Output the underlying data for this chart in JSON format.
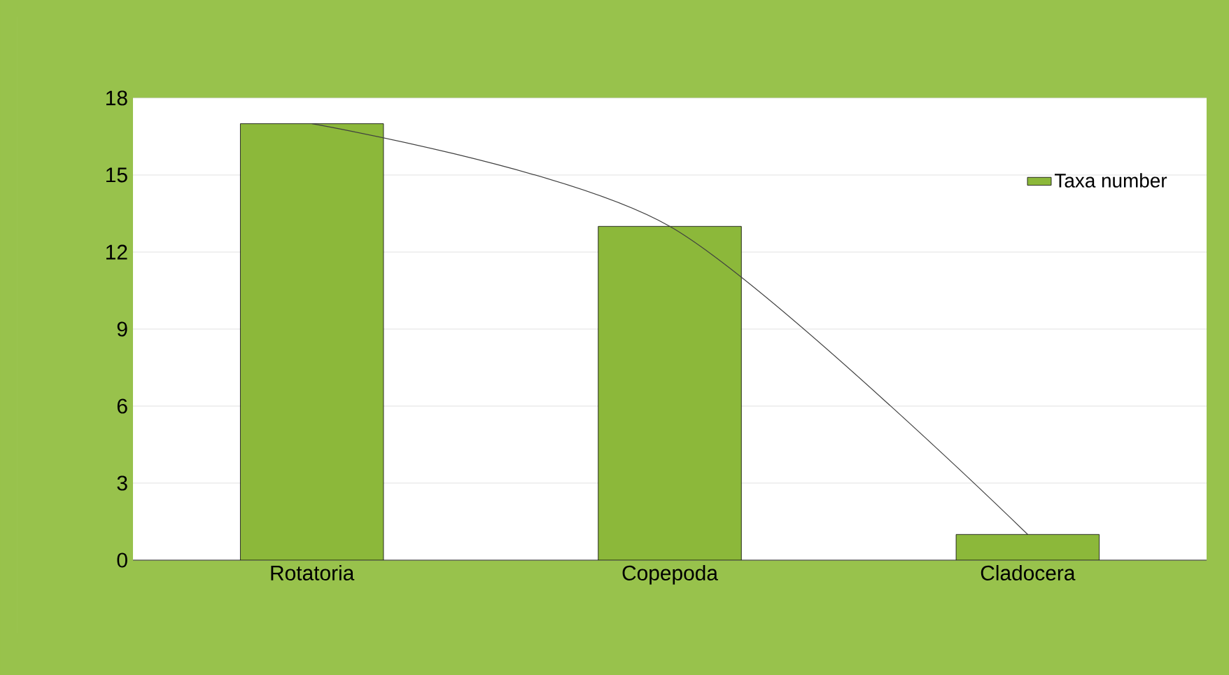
{
  "chart_data": {
    "type": "bar",
    "categories": [
      "Rotatoria",
      "Copepoda",
      "Cladocera"
    ],
    "series": [
      {
        "name": "Taxa number",
        "color": "#8cb83a",
        "values": [
          17,
          13,
          1
        ]
      },
      {
        "type": "line",
        "color": "#404040",
        "values": [
          17,
          13,
          1
        ]
      }
    ],
    "ylim": [
      0,
      18
    ],
    "yticks": [
      0,
      3,
      6,
      9,
      12,
      15,
      18
    ],
    "grid": "y",
    "legend": "top right"
  }
}
